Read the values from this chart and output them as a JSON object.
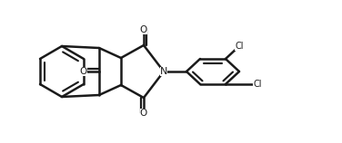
{
  "bg_color": "#ffffff",
  "line_color": "#1a1a1a",
  "line_width": 1.8,
  "fig_width": 3.76,
  "fig_height": 1.58,
  "dpi": 100,
  "atoms": {
    "N_label": "N",
    "O1_label": "O",
    "O2_label": "O",
    "O3_label": "O",
    "Cl1_label": "Cl",
    "Cl2_label": "Cl"
  }
}
